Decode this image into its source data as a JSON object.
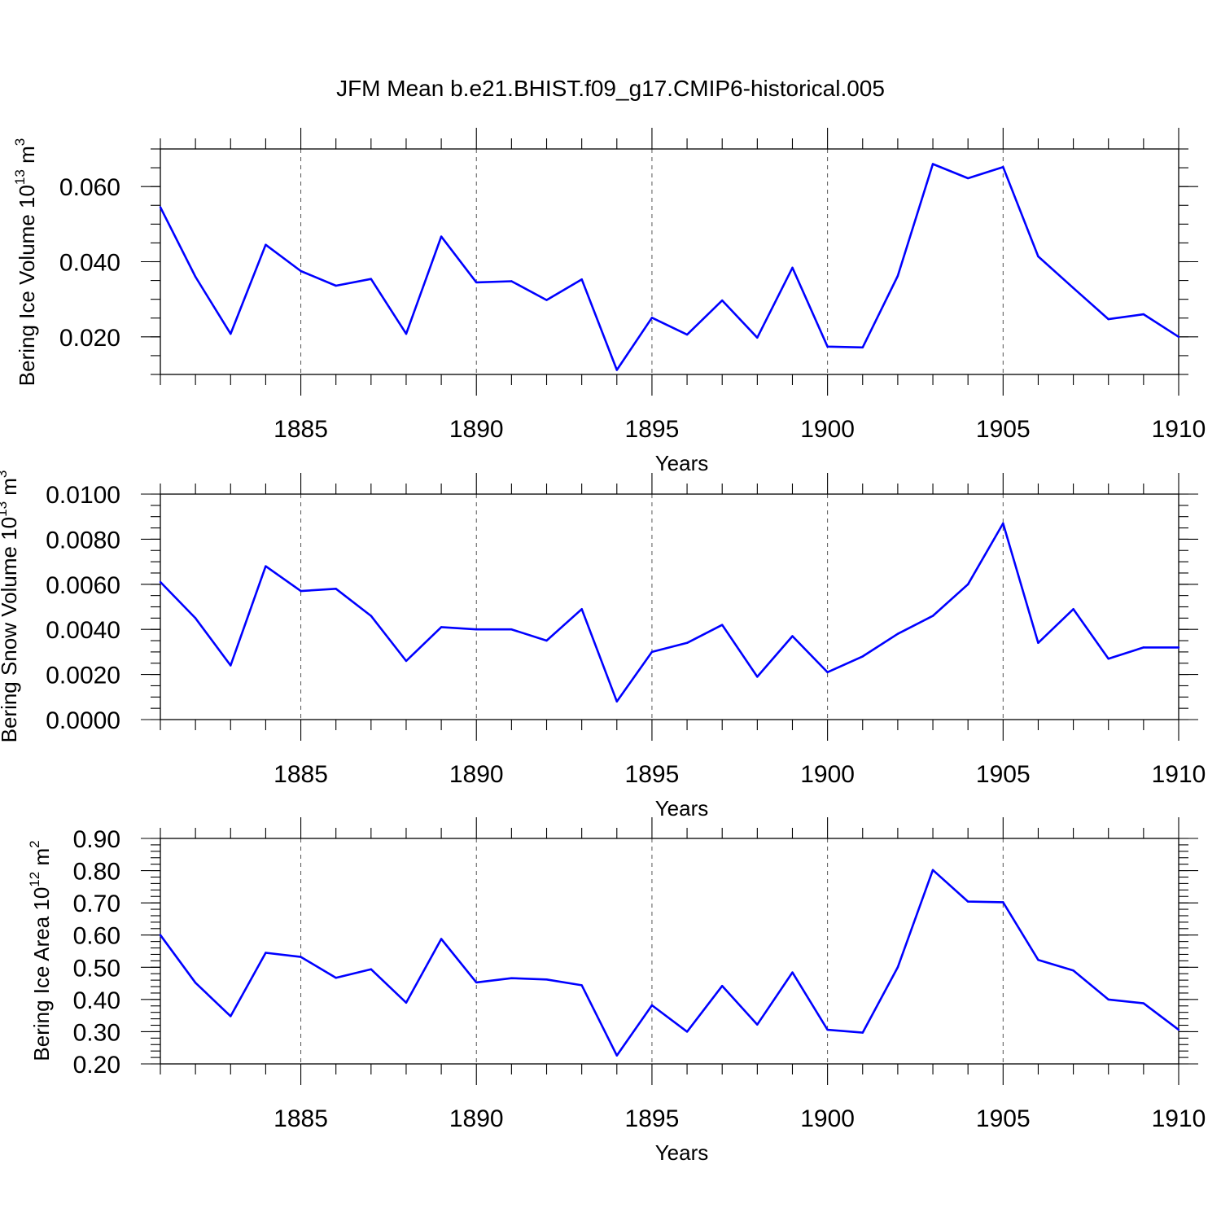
{
  "figure_title": "JFM Mean b.e21.BHIST.f09_g17.CMIP6-historical.005",
  "colors": {
    "series": "#0000ff",
    "axes": "#000000",
    "grid": "#555555"
  },
  "chart_data": [
    {
      "type": "line",
      "title": "JFM Mean b.e21.BHIST.f09_g17.CMIP6-historical.005",
      "xlabel": "Years",
      "ylabel": "Bering Ice Volume 10",
      "ylabel_unit": "m",
      "ylabel_exp1": "13",
      "ylabel_exp2": "3",
      "x": [
        1881,
        1882,
        1883,
        1884,
        1885,
        1886,
        1887,
        1888,
        1889,
        1890,
        1891,
        1892,
        1893,
        1894,
        1895,
        1896,
        1897,
        1898,
        1899,
        1900,
        1901,
        1902,
        1903,
        1904,
        1905,
        1906,
        1907,
        1908,
        1909,
        1910
      ],
      "values": [
        0.0545,
        0.036,
        0.0208,
        0.0445,
        0.0375,
        0.0336,
        0.0354,
        0.0208,
        0.0467,
        0.0345,
        0.0348,
        0.0298,
        0.0353,
        0.0112,
        0.0251,
        0.0206,
        0.0297,
        0.0198,
        0.0384,
        0.0174,
        0.0172,
        0.0362,
        0.066,
        0.0622,
        0.0652,
        0.0414,
        0.033,
        0.0247,
        0.026,
        0.02
      ],
      "xlim": [
        1881,
        1910
      ],
      "ylim": [
        0.01,
        0.07
      ],
      "xticks": [
        "1885",
        "1890",
        "1895",
        "1900",
        "1905",
        "1910"
      ],
      "yticks": [
        "0.020",
        "0.040",
        "0.060"
      ],
      "grid": "dashed vertical at major x ticks"
    },
    {
      "type": "line",
      "xlabel": "Years",
      "ylabel": "Bering Snow Volume 10",
      "ylabel_unit": "m",
      "ylabel_exp1": "13",
      "ylabel_exp2": "3",
      "x": [
        1881,
        1882,
        1883,
        1884,
        1885,
        1886,
        1887,
        1888,
        1889,
        1890,
        1891,
        1892,
        1893,
        1894,
        1895,
        1896,
        1897,
        1898,
        1899,
        1900,
        1901,
        1902,
        1903,
        1904,
        1905,
        1906,
        1907,
        1908,
        1909,
        1910
      ],
      "values": [
        0.0061,
        0.0045,
        0.0024,
        0.0068,
        0.0057,
        0.0058,
        0.0046,
        0.0026,
        0.0041,
        0.004,
        0.004,
        0.0035,
        0.0049,
        0.0008,
        0.003,
        0.0034,
        0.0042,
        0.0019,
        0.0037,
        0.0021,
        0.0028,
        0.0038,
        0.0046,
        0.006,
        0.0087,
        0.0034,
        0.0049,
        0.0027,
        0.0032,
        0.0032
      ],
      "xlim": [
        1881,
        1910
      ],
      "ylim": [
        0.0,
        0.01
      ],
      "xticks": [
        "1885",
        "1890",
        "1895",
        "1900",
        "1905",
        "1910"
      ],
      "yticks": [
        "0.0000",
        "0.0020",
        "0.0040",
        "0.0060",
        "0.0080",
        "0.0100"
      ],
      "grid": "dashed vertical at major x ticks"
    },
    {
      "type": "line",
      "xlabel": "Years",
      "ylabel": "Bering Ice Area 10",
      "ylabel_unit": "m",
      "ylabel_exp1": "12",
      "ylabel_exp2": "2",
      "x": [
        1881,
        1882,
        1883,
        1884,
        1885,
        1886,
        1887,
        1888,
        1889,
        1890,
        1891,
        1892,
        1893,
        1894,
        1895,
        1896,
        1897,
        1898,
        1899,
        1900,
        1901,
        1902,
        1903,
        1904,
        1905,
        1906,
        1907,
        1908,
        1909,
        1910
      ],
      "values": [
        0.6,
        0.452,
        0.348,
        0.545,
        0.532,
        0.467,
        0.494,
        0.39,
        0.588,
        0.453,
        0.466,
        0.462,
        0.444,
        0.226,
        0.382,
        0.3,
        0.442,
        0.322,
        0.484,
        0.306,
        0.297,
        0.5,
        0.802,
        0.704,
        0.702,
        0.523,
        0.49,
        0.4,
        0.388,
        0.306
      ],
      "xlim": [
        1881,
        1910
      ],
      "ylim": [
        0.2,
        0.9
      ],
      "xticks": [
        "1885",
        "1890",
        "1895",
        "1900",
        "1905",
        "1910"
      ],
      "yticks": [
        "0.20",
        "0.30",
        "0.40",
        "0.50",
        "0.60",
        "0.70",
        "0.80",
        "0.90"
      ],
      "grid": "dashed vertical at major x ticks"
    }
  ]
}
